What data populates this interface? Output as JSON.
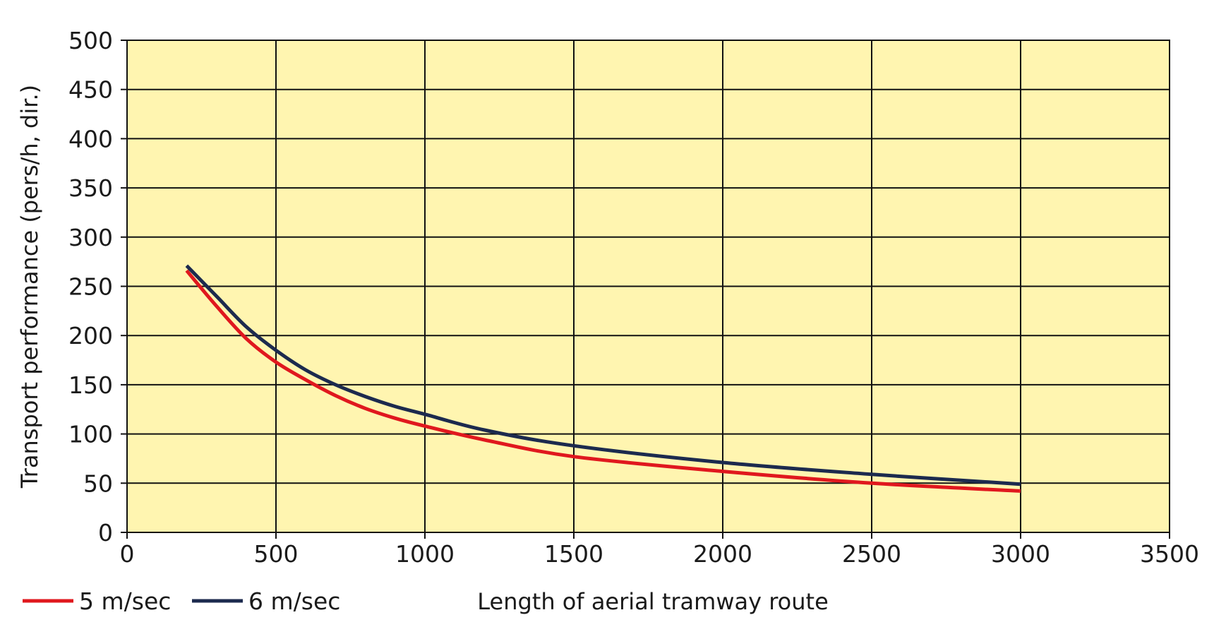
{
  "chart_data": {
    "type": "line",
    "title": "",
    "xlabel": "Length of aerial tramway route",
    "ylabel": "Transport performance (pers/h, dir.)",
    "xlim": [
      0,
      3500
    ],
    "ylim": [
      0,
      500
    ],
    "x_ticks": [
      "0",
      "500",
      "1000",
      "1500",
      "2000",
      "2500",
      "3000",
      "3500"
    ],
    "y_ticks": [
      "0",
      "50",
      "100",
      "150",
      "200",
      "250",
      "300",
      "350",
      "400",
      "450",
      "500"
    ],
    "grid": true,
    "plot_background": "#fff5b0",
    "legend_position": "bottom-left",
    "series": [
      {
        "name": "5 m/sec",
        "color": "#e0181e",
        "x": [
          200,
          300,
          400,
          500,
          600,
          700,
          800,
          900,
          1000,
          1200,
          1500,
          2000,
          2500,
          3000
        ],
        "y": [
          266,
          230,
          197,
          173,
          155,
          139,
          126,
          116,
          108,
          94,
          77,
          62,
          50,
          42
        ]
      },
      {
        "name": "6 m/sec",
        "color": "#1c2a4e",
        "x": [
          200,
          300,
          400,
          500,
          600,
          700,
          800,
          900,
          1000,
          1200,
          1500,
          2000,
          2500,
          3000
        ],
        "y": [
          271,
          240,
          209,
          185,
          165,
          150,
          138,
          128,
          120,
          104,
          88,
          71,
          59,
          49
        ]
      }
    ]
  }
}
